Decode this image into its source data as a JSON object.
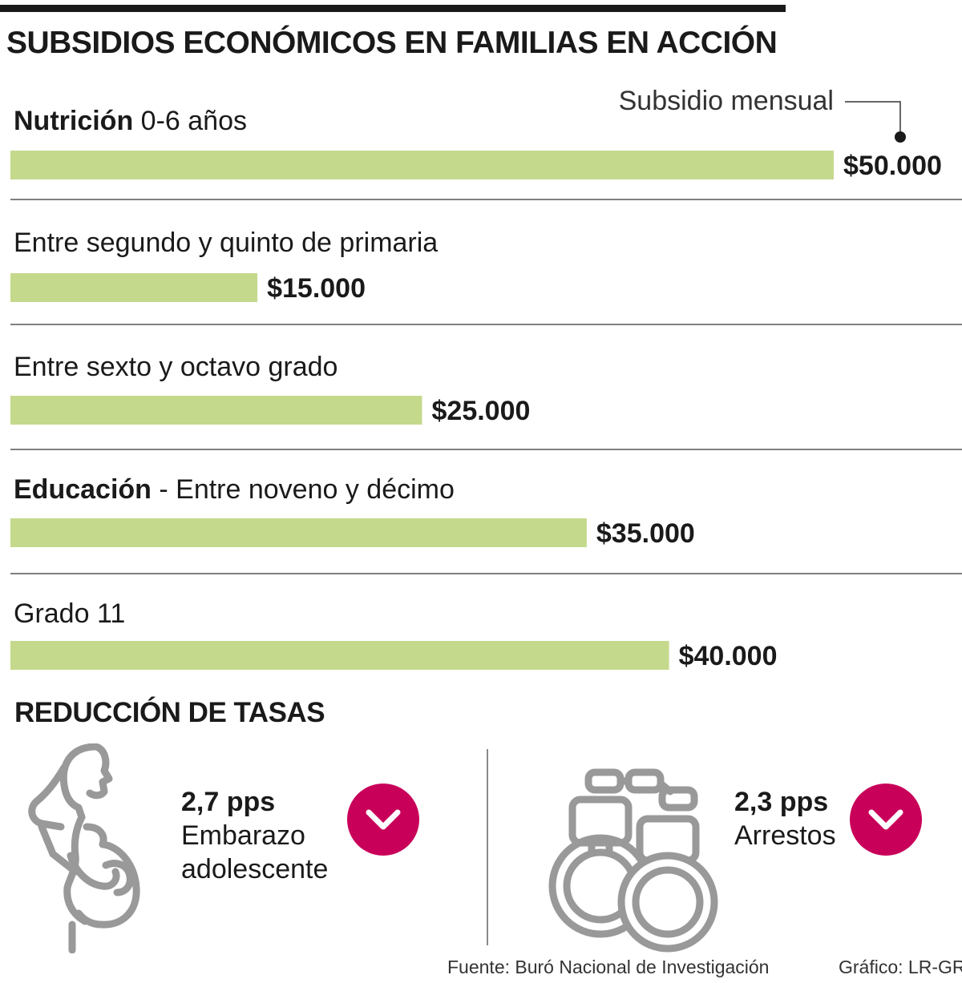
{
  "title": "SUBSIDIOS ECONÓMICOS EN FAMILIAS EN ACCIÓN",
  "chart_data": {
    "type": "bar",
    "orientation": "horizontal",
    "annotation": "Subsidio mensual",
    "categories": [
      {
        "bold": "Nutrición",
        "rest": " 0-6 años"
      },
      {
        "bold": "",
        "rest": "Entre segundo y quinto de primaria"
      },
      {
        "bold": "",
        "rest": "Entre sexto y octavo grado"
      },
      {
        "bold": "Educación",
        "rest": " - Entre noveno y décimo"
      },
      {
        "bold": "",
        "rest": "Grado 11"
      }
    ],
    "values": [
      50000,
      15000,
      25000,
      35000,
      40000
    ],
    "value_labels": [
      "$50.000",
      "$15.000",
      "$25.000",
      "$35.000",
      "$40.000"
    ],
    "xlim": [
      0,
      50000
    ],
    "grid": false
  },
  "reduction": {
    "title": "REDUCCIÓN DE TASAS",
    "items": [
      {
        "value": "2,7 pps",
        "label_lines": [
          "Embarazo",
          "adolescente"
        ],
        "icon": "pregnant-woman-icon",
        "badge_icon": "chevron-down-icon"
      },
      {
        "value": "2,3 pps",
        "label_lines": [
          "Arrestos"
        ],
        "icon": "handcuffs-icon",
        "badge_icon": "chevron-down-icon"
      }
    ]
  },
  "footer": {
    "source": "Fuente: Buró Nacional de Investigación",
    "credit": "Gráfico: LR-GR"
  },
  "colors": {
    "bar": "#c5d98c",
    "text": "#1a1a1a",
    "separator": "#555555",
    "badge": "#c8005a",
    "icon_stroke": "#999999"
  }
}
